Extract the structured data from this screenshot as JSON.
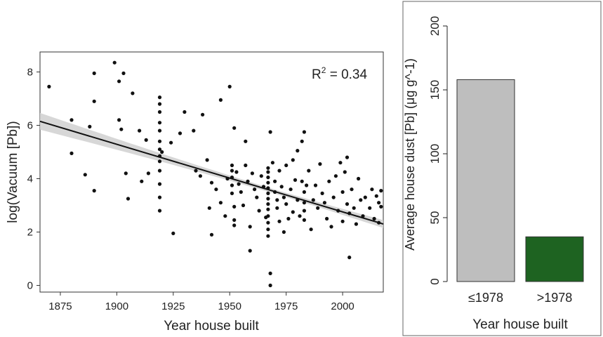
{
  "chart_data": [
    {
      "type": "scatter",
      "xlabel": "Year house built",
      "ylabel": "log(Vacuum [Pb])",
      "annotation": {
        "base": "R",
        "sup": "2",
        "rest": " = 0.34"
      },
      "xlim": [
        1866,
        2018
      ],
      "ylim": [
        -0.25,
        8.75
      ],
      "xticks": [
        1875,
        1900,
        1925,
        1950,
        1975,
        2000
      ],
      "yticks": [
        0,
        2,
        4,
        6,
        8
      ],
      "grid": false,
      "fit_line": {
        "x": [
          1866,
          2018
        ],
        "y": [
          6.15,
          2.3
        ]
      },
      "points": [
        [
          1870,
          7.45
        ],
        [
          1880,
          6.2
        ],
        [
          1880,
          4.95
        ],
        [
          1886,
          4.15
        ],
        [
          1888,
          5.95
        ],
        [
          1890,
          7.95
        ],
        [
          1890,
          6.9
        ],
        [
          1890,
          3.55
        ],
        [
          1899,
          8.35
        ],
        [
          1901,
          7.65
        ],
        [
          1901,
          6.2
        ],
        [
          1903,
          7.95
        ],
        [
          1902,
          5.85
        ],
        [
          1904,
          4.2
        ],
        [
          1905,
          3.25
        ],
        [
          1907,
          7.2
        ],
        [
          1910,
          5.8
        ],
        [
          1911,
          3.9
        ],
        [
          1913,
          5.45
        ],
        [
          1914,
          4.2
        ],
        [
          1919,
          7.05
        ],
        [
          1919,
          6.8
        ],
        [
          1919,
          6.5
        ],
        [
          1919,
          6.1
        ],
        [
          1919,
          5.8
        ],
        [
          1919,
          5.4
        ],
        [
          1919,
          5.1
        ],
        [
          1919,
          4.85
        ],
        [
          1919,
          4.65
        ],
        [
          1919,
          4.3
        ],
        [
          1919,
          3.8
        ],
        [
          1919,
          3.3
        ],
        [
          1919,
          2.8
        ],
        [
          1920,
          5.0
        ],
        [
          1924,
          5.35
        ],
        [
          1925,
          1.95
        ],
        [
          1928,
          5.7
        ],
        [
          1930,
          6.5
        ],
        [
          1934,
          5.8
        ],
        [
          1935,
          4.3
        ],
        [
          1937,
          4.1
        ],
        [
          1938,
          6.4
        ],
        [
          1940,
          4.7
        ],
        [
          1941,
          2.9
        ],
        [
          1942,
          3.85
        ],
        [
          1942,
          1.9
        ],
        [
          1944,
          3.6
        ],
        [
          1946,
          3.1
        ],
        [
          1946,
          6.95
        ],
        [
          1948,
          2.6
        ],
        [
          1949,
          4.0
        ],
        [
          1950,
          7.45
        ],
        [
          1951,
          4.5
        ],
        [
          1951,
          4.3
        ],
        [
          1951,
          4.05
        ],
        [
          1951,
          3.75
        ],
        [
          1951,
          3.45
        ],
        [
          1952,
          2.95
        ],
        [
          1952,
          2.45
        ],
        [
          1952,
          2.25
        ],
        [
          1952,
          5.9
        ],
        [
          1953,
          4.25
        ],
        [
          1954,
          3.8
        ],
        [
          1955,
          3.5
        ],
        [
          1956,
          3.0
        ],
        [
          1957,
          4.5
        ],
        [
          1957,
          5.4
        ],
        [
          1958,
          3.9
        ],
        [
          1959,
          2.2
        ],
        [
          1959,
          1.3
        ],
        [
          1960,
          4.2
        ],
        [
          1961,
          3.6
        ],
        [
          1962,
          3.3
        ],
        [
          1963,
          2.8
        ],
        [
          1964,
          4.1
        ],
        [
          1965,
          3.7
        ],
        [
          1966,
          2.55
        ],
        [
          1967,
          4.4
        ],
        [
          1967,
          4.25
        ],
        [
          1967,
          4.05
        ],
        [
          1967,
          3.85
        ],
        [
          1967,
          3.65
        ],
        [
          1967,
          3.45
        ],
        [
          1967,
          3.25
        ],
        [
          1967,
          3.05
        ],
        [
          1967,
          2.85
        ],
        [
          1967,
          2.6
        ],
        [
          1967,
          2.35
        ],
        [
          1967,
          2.1
        ],
        [
          1967,
          1.85
        ],
        [
          1968,
          5.75
        ],
        [
          1968,
          0.45
        ],
        [
          1968,
          0.0
        ],
        [
          1969,
          4.6
        ],
        [
          1970,
          3.9
        ],
        [
          1970,
          3.5
        ],
        [
          1971,
          3.2
        ],
        [
          1971,
          2.9
        ],
        [
          1972,
          2.4
        ],
        [
          1972,
          4.3
        ],
        [
          1973,
          3.7
        ],
        [
          1974,
          3.3
        ],
        [
          1974,
          2.0
        ],
        [
          1975,
          4.5
        ],
        [
          1975,
          3.05
        ],
        [
          1976,
          2.5
        ],
        [
          1977,
          3.6
        ],
        [
          1978,
          4.7
        ],
        [
          1978,
          2.75
        ],
        [
          1979,
          3.95
        ],
        [
          1980,
          3.2
        ],
        [
          1980,
          5.05
        ],
        [
          1981,
          2.6
        ],
        [
          1982,
          5.4
        ],
        [
          1982,
          3.9
        ],
        [
          1983,
          3.5
        ],
        [
          1983,
          3.1
        ],
        [
          1983,
          2.8
        ],
        [
          1983,
          2.45
        ],
        [
          1983,
          5.75
        ],
        [
          1984,
          3.75
        ],
        [
          1985,
          4.3
        ],
        [
          1986,
          2.1
        ],
        [
          1987,
          3.2
        ],
        [
          1988,
          3.75
        ],
        [
          1989,
          2.9
        ],
        [
          1990,
          4.55
        ],
        [
          1991,
          3.45
        ],
        [
          1992,
          3.1
        ],
        [
          1993,
          2.5
        ],
        [
          1994,
          3.9
        ],
        [
          1995,
          2.2
        ],
        [
          1996,
          3.3
        ],
        [
          1997,
          4.1
        ],
        [
          1998,
          2.8
        ],
        [
          1999,
          4.6
        ],
        [
          2000,
          3.5
        ],
        [
          2000,
          2.4
        ],
        [
          2001,
          4.25
        ],
        [
          2002,
          3.05
        ],
        [
          2002,
          4.8
        ],
        [
          2003,
          2.7
        ],
        [
          2003,
          1.05
        ],
        [
          2004,
          3.6
        ],
        [
          2005,
          2.9
        ],
        [
          2006,
          2.3
        ],
        [
          2007,
          4.0
        ],
        [
          2008,
          3.2
        ],
        [
          2009,
          2.6
        ],
        [
          2010,
          3.3
        ],
        [
          2012,
          2.9
        ],
        [
          2013,
          3.6
        ],
        [
          2014,
          2.5
        ],
        [
          2015,
          3.35
        ],
        [
          2016,
          2.35
        ],
        [
          2016,
          3.1
        ],
        [
          2017,
          2.95
        ],
        [
          2017,
          3.55
        ]
      ]
    },
    {
      "type": "bar",
      "categories": [
        "≤1978",
        ">1978"
      ],
      "values": [
        158,
        35
      ],
      "colors": [
        "#bebebe",
        "#1e6321"
      ],
      "xlabel": "Year house built",
      "ylabel": "Average house dust [Pb] (μg g^-1)",
      "ylim": [
        0,
        200
      ],
      "yticks": [
        0,
        50,
        100,
        150,
        200
      ],
      "grid": false
    }
  ]
}
